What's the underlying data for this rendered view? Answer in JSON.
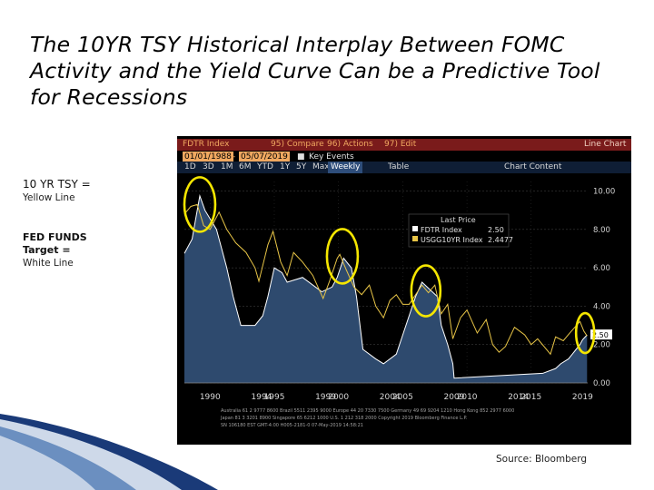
{
  "title": {
    "lines": [
      "The 10YR TSY Historical Interplay Between FOMC",
      "Activity and the Yield Curve Can be a Predictive Tool",
      "for Recessions"
    ]
  },
  "labels": {
    "tsy_head": "10 YR TSY =",
    "tsy_sub": "Yellow Line",
    "ff_head": "FED FUNDS",
    "ff_head2": "Target =",
    "ff_sub": "White Line"
  },
  "source": "Source: Bloomberg",
  "terminal": {
    "ticker": "FDTR Index",
    "compare": "95) Compare",
    "actions": "96) Actions",
    "edit": "97) Edit",
    "chart_type": "Line Chart",
    "start_date": "01/01/1988",
    "end_date": "05/07/2019",
    "key_events": "Key Events",
    "ranges": [
      "1D",
      "3D",
      "1M",
      "6M",
      "YTD",
      "1Y",
      "5Y",
      "Max"
    ],
    "frequency": "Weekly",
    "table": "Table",
    "chart_content": "Chart Content",
    "legend_title": "Last Price",
    "legend_rows": [
      {
        "name": "FDTR Index",
        "value": "2.50"
      },
      {
        "name": "USGG10YR Index",
        "value": "2.4477"
      }
    ],
    "footer_lines": [
      "Australia 61 2 9777 8600 Brazil 5511 2395 9000 Europe 44 20 7330 7500 Germany 49 69 9204 1210 Hong Kong 852 2977 6000",
      "Japan 81 3 3201 8900 Singapore 65 6212 1000 U.S. 1 212 318 2000 Copyright 2019 Bloomberg Finance L.P.",
      "SN 106180 EST GMT-4:00 H005-2181-0 07-May-2019 14:58:21"
    ]
  },
  "chart_data": {
    "type": "line",
    "title": "",
    "xlabel": "",
    "ylabel": "",
    "x_tick_labels": [
      "1990",
      "1994",
      "1995",
      "1999",
      "2000",
      "2004",
      "2005",
      "2009",
      "2010",
      "2014",
      "2015",
      "2019"
    ],
    "y_ticks": [
      "0.00",
      "2.00",
      "4.00",
      "6.00",
      "8.00",
      "10.00"
    ],
    "ylim": [
      0,
      10.5
    ],
    "xlim": [
      1988.0,
      2019.4
    ],
    "last_value_tag": "2.50",
    "series": [
      {
        "name": "FDTR Index",
        "color": "#ffffff",
        "fill": "#2e4a6e",
        "x": [
          1988.0,
          1988.6,
          1989.2,
          1989.6,
          1990.5,
          1990.9,
          1991.3,
          1991.8,
          1992.4,
          1993.5,
          1994.1,
          1994.5,
          1995.0,
          1995.6,
          1996.0,
          1997.2,
          1998.7,
          1999.5,
          1999.9,
          2000.4,
          2001.0,
          2001.4,
          2001.9,
          2002.9,
          2003.5,
          2004.5,
          2005.0,
          2006.0,
          2006.5,
          2007.7,
          2008.0,
          2008.5,
          2008.9,
          2009.0,
          2015.9,
          2016.9,
          2017.3,
          2017.9,
          2018.2,
          2018.5,
          2018.8,
          2019.0,
          2019.35
        ],
        "y": [
          6.75,
          7.5,
          9.75,
          9.0,
          8.0,
          7.0,
          6.0,
          4.5,
          3.0,
          3.0,
          3.5,
          4.5,
          6.0,
          5.75,
          5.25,
          5.5,
          4.75,
          5.0,
          5.5,
          6.5,
          6.0,
          4.5,
          1.75,
          1.25,
          1.0,
          1.5,
          2.5,
          4.5,
          5.25,
          4.5,
          3.0,
          2.0,
          1.0,
          0.25,
          0.5,
          0.75,
          1.0,
          1.25,
          1.5,
          1.75,
          2.0,
          2.25,
          2.5
        ]
      },
      {
        "name": "USGG10YR Index",
        "color": "#e8c547",
        "x": [
          1988.0,
          1988.5,
          1989.0,
          1989.5,
          1990.0,
          1990.7,
          1991.3,
          1992.0,
          1992.8,
          1993.5,
          1993.8,
          1994.5,
          1994.9,
          1995.5,
          1996.0,
          1996.5,
          1997.2,
          1998.0,
          1998.8,
          1999.3,
          1999.9,
          2000.1,
          2000.6,
          2001.2,
          2001.8,
          2002.4,
          2002.9,
          2003.5,
          2004.0,
          2004.5,
          2005.0,
          2005.5,
          2006.0,
          2006.5,
          2007.0,
          2007.5,
          2008.0,
          2008.5,
          2008.9,
          2009.5,
          2010.0,
          2010.8,
          2011.5,
          2012.0,
          2012.5,
          2013.0,
          2013.7,
          2014.5,
          2015.0,
          2015.5,
          2016.5,
          2016.9,
          2017.5,
          2018.0,
          2018.8,
          2019.1,
          2019.35
        ],
        "y": [
          8.8,
          9.2,
          9.3,
          8.2,
          8.0,
          8.9,
          8.0,
          7.3,
          6.8,
          6.0,
          5.3,
          7.2,
          7.9,
          6.3,
          5.6,
          6.8,
          6.3,
          5.6,
          4.4,
          5.3,
          6.5,
          6.7,
          5.9,
          5.0,
          4.6,
          5.1,
          4.0,
          3.4,
          4.3,
          4.6,
          4.1,
          4.1,
          4.6,
          5.1,
          4.7,
          5.1,
          3.6,
          4.1,
          2.3,
          3.4,
          3.8,
          2.6,
          3.3,
          2.0,
          1.6,
          1.9,
          2.9,
          2.5,
          2.0,
          2.3,
          1.5,
          2.4,
          2.2,
          2.6,
          3.2,
          2.7,
          2.45
        ]
      }
    ],
    "highlight_circles_years": [
      1989.2,
      2000.3,
      2006.8,
      2019.2
    ]
  }
}
